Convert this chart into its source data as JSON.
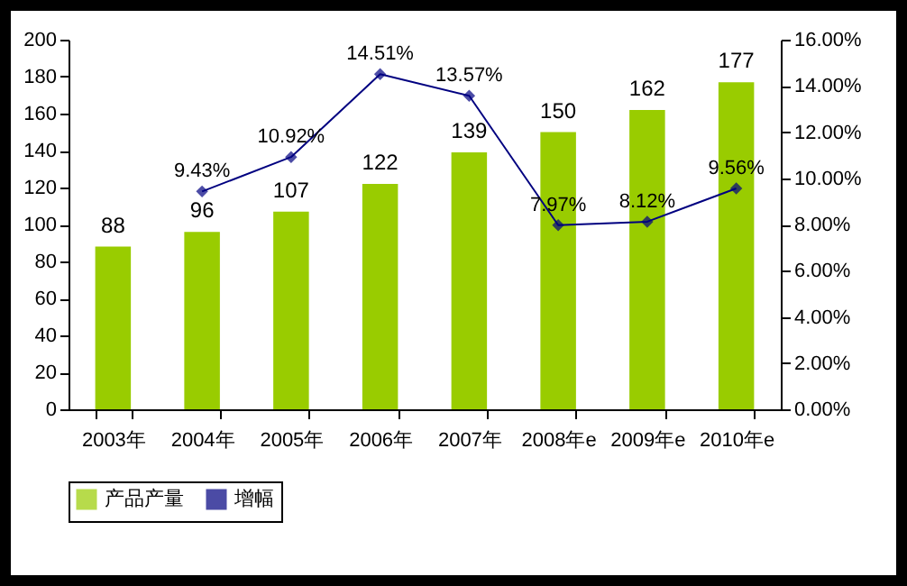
{
  "chart_data": {
    "type": "bar",
    "categories": [
      "2003年",
      "2004年",
      "2005年",
      "2006年",
      "2007年",
      "2008年e",
      "2009年e",
      "2010年e"
    ],
    "series": [
      {
        "name": "产品产量",
        "color": "#99cc00",
        "values": [
          88,
          96,
          107,
          122,
          139,
          150,
          162,
          177
        ],
        "value_labels": [
          "88",
          "96",
          "107",
          "122",
          "139",
          "150",
          "162",
          "177"
        ]
      },
      {
        "name": "增幅",
        "type": "line",
        "axis": "y2",
        "color": "#000080",
        "values": [
          null,
          9.43,
          10.92,
          14.51,
          13.57,
          7.97,
          8.12,
          9.56
        ],
        "value_labels": [
          null,
          "9.43%",
          "10.92%",
          "14.51%",
          "13.57%",
          "7.97%",
          "8.12%",
          "9.56%"
        ]
      }
    ],
    "ylim": [
      0,
      200
    ],
    "yticks": [
      0,
      20,
      40,
      60,
      80,
      100,
      120,
      140,
      160,
      180,
      200
    ],
    "y2lim": [
      0,
      16
    ],
    "y2ticks": [
      {
        "value": 0,
        "label": "0.00%"
      },
      {
        "value": 2,
        "label": "2.00%"
      },
      {
        "value": 4,
        "label": "4.00%"
      },
      {
        "value": 6,
        "label": "6.00%"
      },
      {
        "value": 8,
        "label": "8.00%"
      },
      {
        "value": 10,
        "label": "10.00%"
      },
      {
        "value": 12,
        "label": "12.00%"
      },
      {
        "value": 14,
        "label": "14.00%"
      },
      {
        "value": 16,
        "label": "16.00%"
      }
    ],
    "marker": "diamond",
    "line_style": "solid",
    "legend": "bottom"
  }
}
